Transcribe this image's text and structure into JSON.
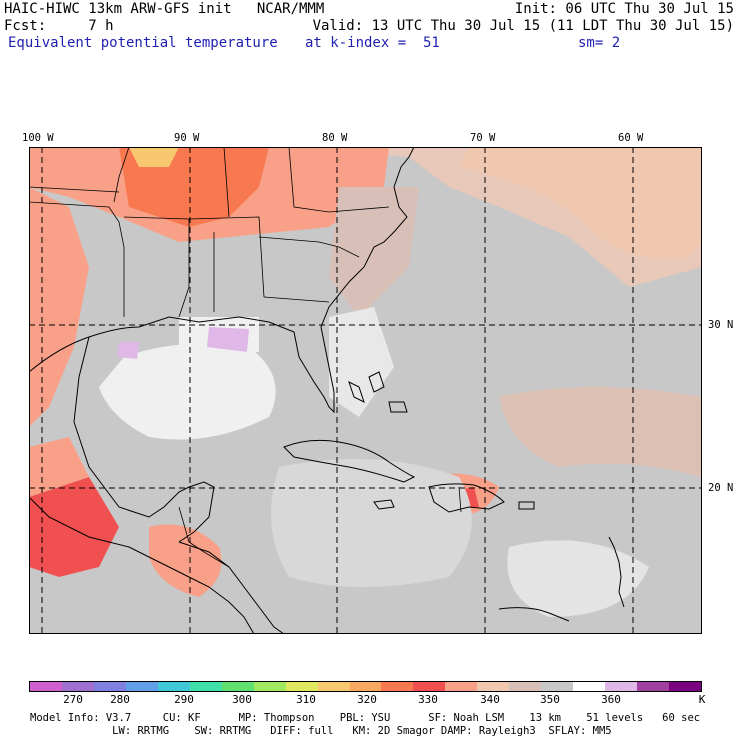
{
  "header": {
    "line1_left": "HAIC-HIWC 13km ARW-GFS init   NCAR/MMM",
    "line1_right": "Init: 06 UTC Thu 30 Jul 15",
    "fcst_label": "Fcst:     7 h",
    "valid": "Valid: 13 UTC Thu 30 Jul 15 (11 LDT Thu 30 Jul 15)",
    "field_name": "Equivalent potential temperature",
    "level": "at k-index =  51",
    "smoothing": "sm= 2"
  },
  "axes": {
    "longitudes": [
      "100 W",
      "90 W",
      "80 W",
      "70 W",
      "60 W"
    ],
    "latitudes": [
      "30 N",
      "20 N"
    ]
  },
  "colorbar": {
    "unit": "K",
    "colors": [
      "#d060d0",
      "#a070d0",
      "#8080e0",
      "#60a0e8",
      "#40c8d8",
      "#40e0a8",
      "#60e070",
      "#a0e860",
      "#e0e860",
      "#f8c870",
      "#f8a860",
      "#f87850",
      "#f05050",
      "#f8a088",
      "#f0c8b0",
      "#d8c0b8",
      "#c8c8c8",
      "#ffffff",
      "#e0b8e8",
      "#a040a0",
      "#7a0080"
    ],
    "labels": [
      "270",
      "280",
      "290",
      "300",
      "310",
      "320",
      "330",
      "340",
      "350",
      "360"
    ]
  },
  "footer": {
    "line1": "Model Info: V3.7     CU: KF      MP: Thompson    PBL: YSU      SF: Noah LSM    13 km    51 levels   60 sec",
    "line2": "             LW: RRTMG    SW: RRTMG   DIFF: full   KM: 2D Smagor DAMP: Rayleigh3  SFLAY: MM5"
  }
}
